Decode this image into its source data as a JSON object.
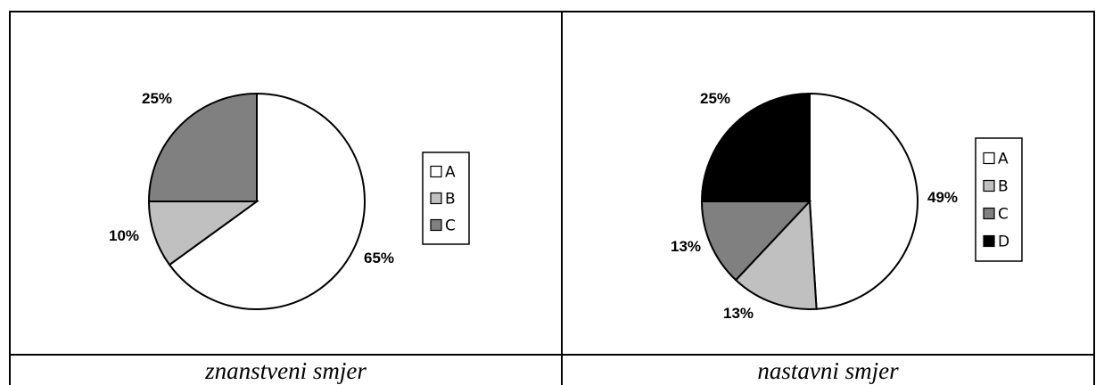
{
  "chart_data": [
    {
      "type": "pie",
      "caption": "znanstveni smjer",
      "categories": [
        "A",
        "B",
        "C"
      ],
      "values": [
        65,
        10,
        25
      ],
      "labels": [
        "65%",
        "10%",
        "25%"
      ],
      "colors": [
        "#ffffff",
        "#c0c0c0",
        "#808080"
      ],
      "legend": "right"
    },
    {
      "type": "pie",
      "caption": "nastavni smjer",
      "categories": [
        "A",
        "B",
        "C",
        "D"
      ],
      "values": [
        49,
        13,
        13,
        25
      ],
      "labels": [
        "49%",
        "13%",
        "13%",
        "25%"
      ],
      "colors": [
        "#ffffff",
        "#c0c0c0",
        "#808080",
        "#000000"
      ],
      "legend": "right"
    }
  ]
}
